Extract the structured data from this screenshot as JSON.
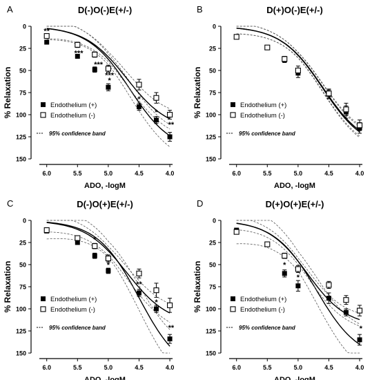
{
  "chart_data": [
    {
      "type": "scatter",
      "panel_letter": "A",
      "title": "D(-)O(-)E(+/-)",
      "xlabel": "ADO, -logM",
      "ylabel": "% Relaxation",
      "xlim": [
        6.0,
        4.0
      ],
      "ylim": [
        0,
        150
      ],
      "y_inverted": true,
      "x_ticks": [
        "6.0",
        "5.5",
        "5.0",
        "4.5",
        "4.0"
      ],
      "y_ticks": [
        "0",
        "25",
        "50",
        "75",
        "100",
        "125",
        "150"
      ],
      "legend": [
        {
          "label": "Endothelium (+)",
          "marker": "filled-square"
        },
        {
          "label": "Endothelium (-)",
          "marker": "open-square"
        }
      ],
      "band_label": "95% confidence band",
      "series": [
        {
          "marker": "filled",
          "x": [
            6.0,
            5.5,
            5.22,
            5.0,
            4.5,
            4.22,
            4.0
          ],
          "y": [
            18,
            34,
            49,
            69,
            91,
            106,
            125
          ],
          "err": [
            2,
            2,
            3,
            4,
            4,
            4,
            5
          ],
          "fit": {
            "top": 142,
            "ec50": 4.65,
            "hill": 0.8
          },
          "band": 12
        },
        {
          "marker": "open",
          "x": [
            6.0,
            5.5,
            5.22,
            5.0,
            4.5,
            4.22,
            4.0
          ],
          "y": [
            11,
            21,
            32,
            48,
            66,
            81,
            100
          ],
          "err": [
            2,
            3,
            3,
            4,
            6,
            6,
            5
          ],
          "fit": {
            "top": 118,
            "ec50": 4.7,
            "hill": 0.8
          },
          "band": 11
        }
      ],
      "annotations": [
        {
          "text": "**",
          "x": 6.0,
          "y": 5
        },
        {
          "text": "***",
          "x": 5.48,
          "y": 30
        },
        {
          "text": "***",
          "x": 5.16,
          "y": 43
        },
        {
          "text": "***",
          "x": 4.98,
          "y": 55
        },
        {
          "text": "*",
          "x": 4.98,
          "y": 61
        },
        {
          "text": "*",
          "x": 4.5,
          "y": 82
        },
        {
          "text": "*",
          "x": 4.22,
          "y": 97
        },
        {
          "text": "**",
          "x": 3.98,
          "y": 111
        }
      ]
    },
    {
      "type": "scatter",
      "panel_letter": "B",
      "title": "D(+)O(-)E(+/-)",
      "xlabel": "ADO, -logM",
      "ylabel": "% Relaxation",
      "xlim": [
        6.0,
        4.0
      ],
      "ylim": [
        0,
        150
      ],
      "y_inverted": true,
      "x_ticks": [
        "6.0",
        "5.5",
        "5.0",
        "4.5",
        "4.0"
      ],
      "y_ticks": [
        "0",
        "25",
        "50",
        "75",
        "100",
        "125",
        "150"
      ],
      "legend": [
        {
          "label": "Endothelium (+)",
          "marker": "filled-square"
        },
        {
          "label": "Endothelium (-)",
          "marker": "open-square"
        }
      ],
      "band_label": "95% confidence band",
      "series": [
        {
          "marker": "filled",
          "x": [
            6.0,
            5.5,
            5.22,
            5.0,
            4.5,
            4.22,
            4.0
          ],
          "y": [
            12,
            24,
            38,
            53,
            77,
            97,
            115
          ],
          "err": [
            2,
            2,
            3,
            5,
            5,
            7,
            6
          ],
          "fit": {
            "top": 140,
            "ec50": 4.6,
            "hill": 0.8
          },
          "band": 6
        },
        {
          "marker": "open",
          "x": [
            6.0,
            5.5,
            5.22,
            5.0,
            4.5,
            4.22,
            4.0
          ],
          "y": [
            12,
            24,
            37,
            50,
            76,
            94,
            112
          ],
          "err": [
            2,
            2,
            3,
            5,
            5,
            7,
            6
          ],
          "fit": {
            "top": 138,
            "ec50": 4.6,
            "hill": 0.8
          },
          "band": 6
        }
      ],
      "annotations": []
    },
    {
      "type": "scatter",
      "panel_letter": "C",
      "title": "D(-)O(+)E(+/-)",
      "xlabel": "ADO, -logM",
      "ylabel": "% Relaxation",
      "xlim": [
        6.0,
        4.0
      ],
      "ylim": [
        0,
        150
      ],
      "y_inverted": true,
      "x_ticks": [
        "6.0",
        "5.5",
        "5.0",
        "4.5",
        "4.0"
      ],
      "y_ticks": [
        "0",
        "25",
        "50",
        "75",
        "100",
        "125",
        "150"
      ],
      "legend": [
        {
          "label": "Endothelium (+)",
          "marker": "filled-square"
        },
        {
          "label": "Endothelium (-)",
          "marker": "open-square"
        }
      ],
      "band_label": "95% confidence band",
      "series": [
        {
          "marker": "filled",
          "x": [
            6.0,
            5.5,
            5.22,
            5.0,
            4.5,
            4.22,
            4.0
          ],
          "y": [
            12,
            25,
            40,
            57,
            82,
            100,
            134
          ],
          "err": [
            2,
            2,
            3,
            3,
            4,
            4,
            5
          ],
          "fit": {
            "top": 175,
            "ec50": 4.5,
            "hill": 0.8
          },
          "band": 18
        },
        {
          "marker": "open",
          "x": [
            6.0,
            5.5,
            5.22,
            5.0,
            4.5,
            4.22,
            4.0
          ],
          "y": [
            11,
            20,
            29,
            43,
            60,
            79,
            96
          ],
          "err": [
            2,
            2,
            3,
            4,
            5,
            8,
            8
          ],
          "fit": {
            "top": 118,
            "ec50": 4.7,
            "hill": 0.8
          },
          "band": 10
        }
      ],
      "annotations": [
        {
          "text": "*",
          "x": 5.22,
          "y": 21
        },
        {
          "text": "*",
          "x": 5.0,
          "y": 50
        },
        {
          "text": "**",
          "x": 4.5,
          "y": 72
        },
        {
          "text": "*",
          "x": 4.22,
          "y": 92
        },
        {
          "text": "**",
          "x": 3.98,
          "y": 121
        }
      ]
    },
    {
      "type": "scatter",
      "panel_letter": "D",
      "title": "D(+)O(+)E(+/-)",
      "xlabel": "ADO, -logM",
      "ylabel": "% Relaxation",
      "xlim": [
        6.0,
        4.0
      ],
      "ylim": [
        0,
        150
      ],
      "y_inverted": true,
      "x_ticks": [
        "6.0",
        "5.5",
        "5.0",
        "4.5",
        "4.0"
      ],
      "y_ticks": [
        "0",
        "25",
        "50",
        "75",
        "100",
        "125",
        "150"
      ],
      "legend": [
        {
          "label": "Endothelium (+)",
          "marker": "filled-square"
        },
        {
          "label": "Endothelium (-)",
          "marker": "open-square"
        }
      ],
      "band_label": "95% confidence band",
      "series": [
        {
          "marker": "filled",
          "x": [
            6.0,
            5.5,
            5.22,
            5.0,
            4.5,
            4.22,
            4.0
          ],
          "y": [
            11,
            27,
            60,
            74,
            88,
            104,
            135
          ],
          "err": [
            2,
            2,
            4,
            6,
            6,
            4,
            6
          ],
          "fit": {
            "top": 158,
            "ec50": 4.7,
            "hill": 0.8
          },
          "band": 22
        },
        {
          "marker": "open",
          "x": [
            6.0,
            5.5,
            5.22,
            5.0,
            4.5,
            4.22,
            4.0
          ],
          "y": [
            13,
            27,
            40,
            55,
            73,
            90,
            102
          ],
          "err": [
            2,
            2,
            3,
            4,
            4,
            5,
            6
          ],
          "fit": {
            "top": 120,
            "ec50": 4.85,
            "hill": 0.85
          },
          "band": 7
        }
      ],
      "annotations": [
        {
          "text": "*",
          "x": 5.22,
          "y": 50
        },
        {
          "text": "*",
          "x": 5.0,
          "y": 64
        },
        {
          "text": "*",
          "x": 3.98,
          "y": 122
        }
      ]
    }
  ]
}
